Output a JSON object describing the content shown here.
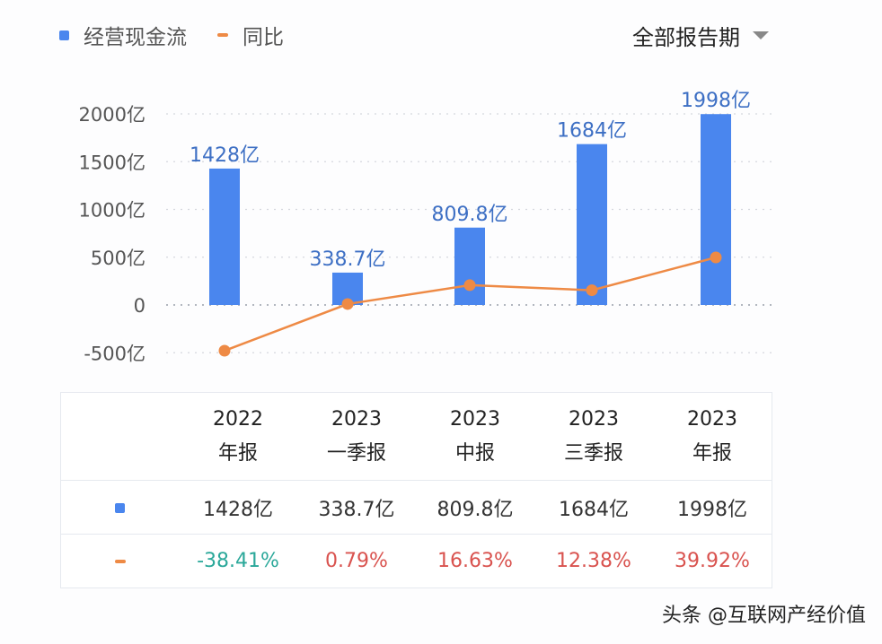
{
  "legend": {
    "bar_label": "经营现金流",
    "line_label": "同比"
  },
  "period_select": {
    "value": "全部报告期"
  },
  "colors": {
    "bar": "#4a86ee",
    "line": "#ee8a45",
    "negative": "#2ba89a",
    "positive": "#d9534f",
    "grid": "#d5d8de"
  },
  "chart_data": {
    "type": "bar+line",
    "categories": [
      "2022 年报",
      "2023 一季报",
      "2023 中报",
      "2023 三季报",
      "2023 年报"
    ],
    "series": [
      {
        "name": "经营现金流",
        "type": "bar",
        "values": [
          1428,
          338.7,
          809.8,
          1684,
          1998
        ],
        "labels": [
          "1428亿",
          "338.7亿",
          "809.8亿",
          "1684亿",
          "1998亿"
        ]
      },
      {
        "name": "同比",
        "type": "line",
        "values": [
          -38.41,
          0.79,
          16.63,
          12.38,
          39.92
        ]
      }
    ],
    "yaxis": {
      "ticks": [
        2000,
        1500,
        1000,
        500,
        0,
        -500
      ],
      "tick_labels": [
        "2000亿",
        "1500亿",
        "1000亿",
        "500亿",
        "0",
        "-500亿"
      ],
      "ylim": [
        -500,
        2000
      ]
    },
    "grid": true,
    "legend_position": "top-left"
  },
  "table": {
    "headers": [
      [
        "2022",
        "年报"
      ],
      [
        "2023",
        "一季报"
      ],
      [
        "2023",
        "中报"
      ],
      [
        "2023",
        "三季报"
      ],
      [
        "2023",
        "年报"
      ]
    ],
    "cash_flow": [
      "1428亿",
      "338.7亿",
      "809.8亿",
      "1684亿",
      "1998亿"
    ],
    "yoy": [
      "-38.41%",
      "0.79%",
      "16.63%",
      "12.38%",
      "39.92%"
    ]
  },
  "watermark": "头条 @互联网产经价值"
}
